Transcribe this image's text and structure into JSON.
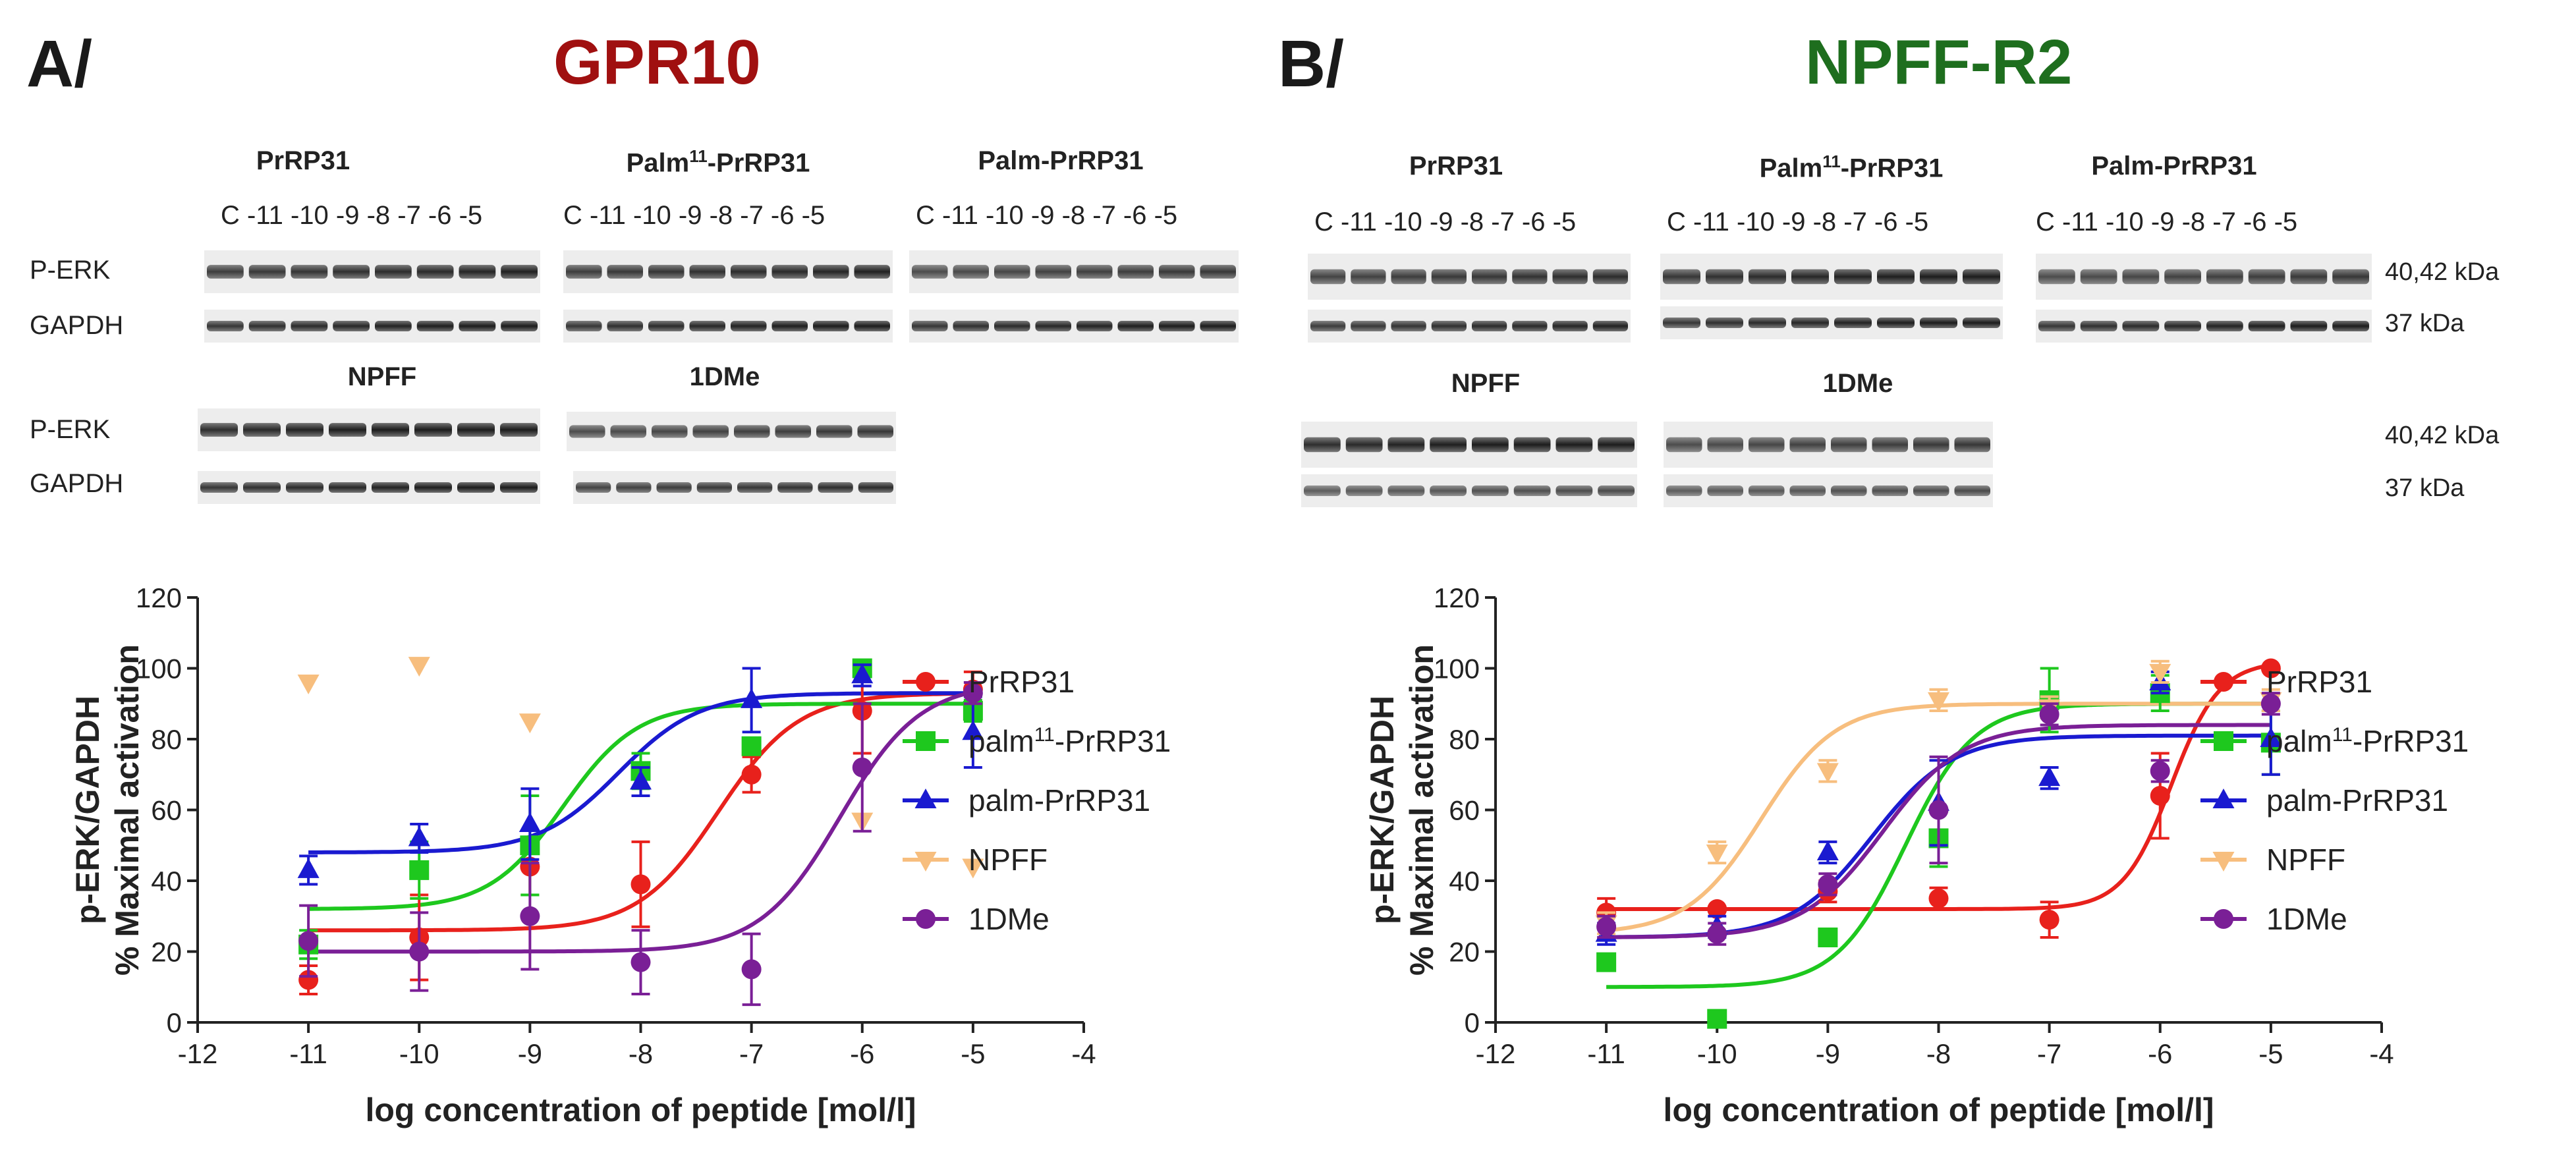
{
  "panel_a": {
    "label": "A/",
    "title": "GPR10",
    "title_color": "#a01010",
    "blot_titles": [
      "PrRP31",
      "1DMe",
      "NPFF"
    ],
    "blot_title_palm11": {
      "pre": "Palm",
      "sup": "11",
      "post": "-PrRP31"
    },
    "blot_title_palm": "Palm-PrRP31",
    "lane_labels": "C -11 -10 -9 -8 -7 -6 -5",
    "row_labels": {
      "perk": "P-ERK",
      "gapdh": "GAPDH"
    }
  },
  "panel_b": {
    "label": "B/",
    "title": "NPFF-R2",
    "title_color": "#1e6e1e",
    "blot_titles": [
      "PrRP31",
      "1DMe",
      "NPFF"
    ],
    "blot_title_palm11": {
      "pre": "Palm",
      "sup": "11",
      "post": "-PrRP31"
    },
    "blot_title_palm": "Palm-PrRP31",
    "lane_labels": "C -11 -10 -9 -8 -7 -6 -5",
    "kda": [
      "40,42 kDa",
      "37 kDa",
      "40,42 kDa",
      "37 kDa"
    ]
  },
  "chart_data": [
    {
      "type": "scatter",
      "title": "GPR10",
      "xlabel": "log concentration of peptide [mol/l]",
      "ylabel_line1": "p-ERK/GAPDH",
      "ylabel_line2": "% Maximal activation",
      "xlim": [
        -12,
        -4
      ],
      "ylim": [
        0,
        120
      ],
      "xticks": [
        -12,
        -11,
        -10,
        -9,
        -8,
        -7,
        -6,
        -5,
        -4
      ],
      "yticks": [
        0,
        20,
        40,
        60,
        80,
        100,
        120
      ],
      "x": [
        -11,
        -10,
        -9,
        -8,
        -7,
        -6,
        -5
      ],
      "series": [
        {
          "name": "PrRP31",
          "color": "#e8211c",
          "marker": "circle",
          "values": [
            12,
            24,
            44,
            39,
            70,
            88,
            94
          ],
          "errors": [
            4,
            12,
            8,
            12,
            5,
            12,
            5
          ],
          "fit": {
            "bottom": 26,
            "top": 93,
            "logec50": -7.3,
            "hill": 1.2
          }
        },
        {
          "name": "palm11-PrRP31",
          "legend": {
            "pre": "palm",
            "sup": "11",
            "post": "-PrRP31"
          },
          "color": "#1ec81e",
          "marker": "square",
          "values": [
            22,
            43,
            50,
            71,
            78,
            100,
            88
          ],
          "errors": [
            4,
            8,
            14,
            5,
            0,
            0,
            3
          ],
          "fit": {
            "bottom": 32,
            "top": 90,
            "logec50": -8.7,
            "hill": 1.3
          }
        },
        {
          "name": "palm-PrRP31",
          "color": "#1a1ad0",
          "marker": "triangle",
          "values": [
            43,
            52,
            56,
            68,
            91,
            98,
            82
          ],
          "errors": [
            4,
            4,
            10,
            4,
            9,
            3,
            10
          ],
          "fit": {
            "bottom": 48,
            "top": 93,
            "logec50": -8.2,
            "hill": 1.2
          }
        },
        {
          "name": "NPFF",
          "color": "#f7be7e",
          "marker": "triangle-down",
          "values": [
            96,
            101,
            85,
            0,
            0,
            57,
            44
          ],
          "present": [
            true,
            true,
            true,
            false,
            false,
            true,
            true
          ],
          "errors": [
            0,
            0,
            0,
            0,
            0,
            0,
            0
          ]
        },
        {
          "name": "1DMe",
          "color": "#7a1f96",
          "marker": "circle",
          "values": [
            23,
            20,
            30,
            17,
            15,
            72,
            93
          ],
          "errors": [
            10,
            11,
            15,
            9,
            10,
            18,
            3
          ],
          "fit": {
            "bottom": 20,
            "top": 96,
            "logec50": -6.2,
            "hill": 1.2
          }
        }
      ]
    },
    {
      "type": "scatter",
      "title": "NPFF-R2",
      "xlabel": "log concentration of peptide [mol/l]",
      "ylabel_line1": "p-ERK/GAPDH",
      "ylabel_line2": "% Maximal activation",
      "xlim": [
        -12,
        -4
      ],
      "ylim": [
        0,
        120
      ],
      "xticks": [
        -12,
        -11,
        -10,
        -9,
        -8,
        -7,
        -6,
        -5,
        -4
      ],
      "yticks": [
        0,
        20,
        40,
        60,
        80,
        100,
        120
      ],
      "x": [
        -11,
        -10,
        -9,
        -8,
        -7,
        -6,
        -5
      ],
      "series": [
        {
          "name": "PrRP31",
          "color": "#e8211c",
          "marker": "circle",
          "values": [
            31,
            32,
            37,
            35,
            29,
            64,
            100
          ],
          "errors": [
            4,
            0,
            3,
            3,
            5,
            12,
            0
          ],
          "fit": {
            "bottom": 32,
            "top": 102,
            "logec50": -5.9,
            "hill": 2.0
          }
        },
        {
          "name": "palm11-PrRP31",
          "legend": {
            "pre": "palm",
            "sup": "11",
            "post": "-PrRP31"
          },
          "color": "#1ec81e",
          "marker": "square",
          "values": [
            17,
            1,
            24,
            52,
            91,
            93,
            79
          ],
          "errors": [
            0,
            0,
            0,
            8,
            9,
            5,
            9
          ],
          "fit": {
            "bottom": 10,
            "top": 90,
            "logec50": -8.3,
            "hill": 1.4
          }
        },
        {
          "name": "palm-PrRP31",
          "color": "#1a1ad0",
          "marker": "triangle",
          "values": [
            25,
            27,
            48,
            62,
            69,
            96,
            80
          ],
          "errors": [
            3,
            3,
            3,
            12,
            3,
            3,
            10
          ],
          "fit": {
            "bottom": 24,
            "top": 81,
            "logec50": -8.6,
            "hill": 1.2
          }
        },
        {
          "name": "NPFF",
          "color": "#f7be7e",
          "marker": "triangle-down",
          "values": [
            28,
            48,
            71,
            91,
            89,
            99,
            91
          ],
          "errors": [
            3,
            3,
            3,
            3,
            3,
            3,
            3
          ],
          "fit": {
            "bottom": 25,
            "top": 90,
            "logec50": -9.6,
            "hill": 1.3
          }
        },
        {
          "name": "1DMe",
          "color": "#7a1f96",
          "marker": "circle",
          "values": [
            27,
            25,
            39,
            60,
            87,
            71,
            90
          ],
          "errors": [
            3,
            3,
            3,
            15,
            3,
            3,
            3
          ],
          "fit": {
            "bottom": 24,
            "top": 84,
            "logec50": -8.5,
            "hill": 1.2
          }
        }
      ]
    }
  ]
}
